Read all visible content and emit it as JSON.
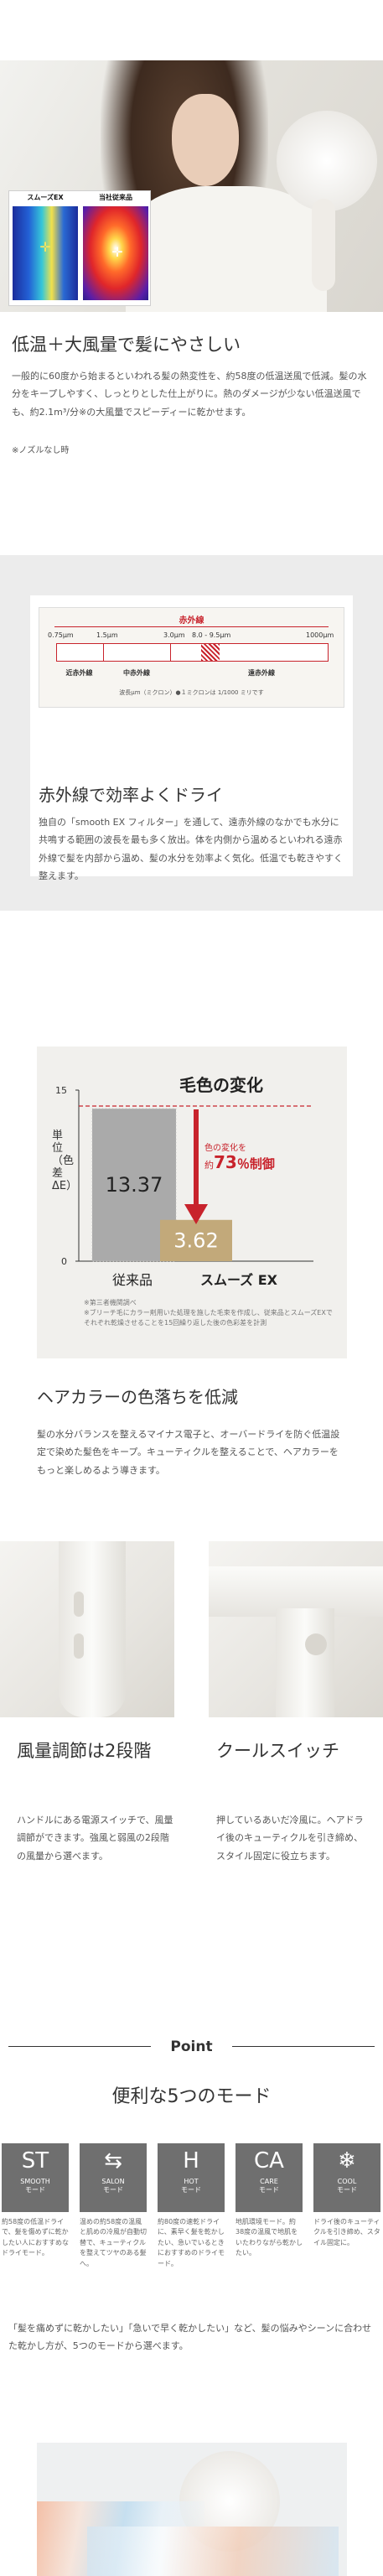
{
  "hero": {
    "thermo_ex_label": "スムーズEX",
    "thermo_conv_label": "当社従来品",
    "title": "低温＋大風量で髪にやさしい",
    "body": "一般的に60度から始まるといわれる髪の熱変性を、約58度の低温送風で低減。髪の水分をキープしやすく、しっとりとした仕上がりに。熱のダメージが少ない低温送風でも、約2.1m³/分※の大風量でスピーディーに乾かせます。",
    "note": "※ノズルなし時"
  },
  "infrared": {
    "diagram": {
      "title": "赤外線",
      "ticks": [
        "0.75μm",
        "1.5μm",
        "3.0μm",
        "8.0 - 9.5μm",
        "1000μm"
      ],
      "bands": [
        "近赤外線",
        "中赤外線",
        "遠赤外線"
      ],
      "caption": "波長μm（ミクロン）●１ミクロンは 1/1000 ミリです"
    },
    "title": "赤外線で効率よくドライ",
    "body": "独自の「smooth EX フィルター」を通して、遠赤外線のなかでも水分に共鳴する範囲の波長を最も多く放出。体を内側から温めるといわれる遠赤外線で髪を内部から温め、髪の水分を効率よく気化。低温でも乾きやすく整えます。"
  },
  "color_change": {
    "chart_title": "毛色の変化",
    "y_label": "単位（色差ΔE）",
    "y_ticks": [
      "15",
      "0"
    ],
    "reduction_label": "色の変化を",
    "reduction_prefix": "約",
    "reduction_value": "73",
    "reduction_suffix": "％制御",
    "footnote_1": "※第三者機関調べ",
    "footnote_2": "※ブリーチ毛にカラー剤用いた処理を施した毛束を作成し、従来品とスムーズEXでそれぞれ乾燥させることを15回繰り返した後の色彩差を計測",
    "title": "ヘアカラーの色落ちを低減",
    "body": "髪の水分バランスを整えるマイナス電子と、オーバードライを防ぐ低温設定で染めた髪色をキープ。キューティクルを整えることで、ヘアカラーをもっと楽しめるよう導きます。"
  },
  "chart_data": {
    "type": "bar",
    "title": "毛色の変化",
    "ylabel": "単位（色差ΔE）",
    "categories": [
      "従来品",
      "スムーズ EX"
    ],
    "values": [
      13.37,
      3.62
    ],
    "ylim": [
      0,
      15
    ],
    "annotation": "色の変化を約73％制御",
    "colors": [
      "#aaaaaa",
      "#c2a97a"
    ],
    "grid": false
  },
  "features": {
    "left_title": "風量調節は2段階",
    "left_body": "ハンドルにある電源スイッチで、風量調節ができます。強風と弱風の2段階の風量から選べます。",
    "right_title": "クールスイッチ",
    "right_body": "押しているあいだ冷風に。ヘアドライ後のキューティクルを引き締め、スタイル固定に役立ちます。"
  },
  "modes": {
    "point_label": "Point",
    "title": "便利な5つのモード",
    "items": [
      {
        "big": "ST",
        "en": "SMOOTH",
        "jp": "モード",
        "desc": "約58度の低温ドライで、髪を傷めずに乾かしたい人におすすめなドライモード。"
      },
      {
        "big": "⇆",
        "en": "SALON",
        "jp": "モード",
        "desc": "温めの約58度の温風と肌めの冷風が自動切替で、キューティクルを整えてツヤのある髪へ。"
      },
      {
        "big": "H",
        "en": "HOT",
        "jp": "モード",
        "desc": "約80度の速乾ドライに、素早く髪を乾かしたい、急いでいるときにおすすめのドライモード。"
      },
      {
        "big": "CA",
        "en": "CARE",
        "jp": "モード",
        "desc": "地肌環境モード。約38度の温風で地肌をいたわりながら乾かしたい。"
      },
      {
        "big": "❄",
        "en": "COOL",
        "jp": "モード",
        "desc": "ドライ後のキューティクルを引き締め、スタイル固定に。"
      }
    ],
    "body": "「髪を痛めずに乾かしたい」「急いで早く乾かしたい」など、髪の悩みやシーンに合わせた乾かし方が、5つのモードから選べます。"
  }
}
